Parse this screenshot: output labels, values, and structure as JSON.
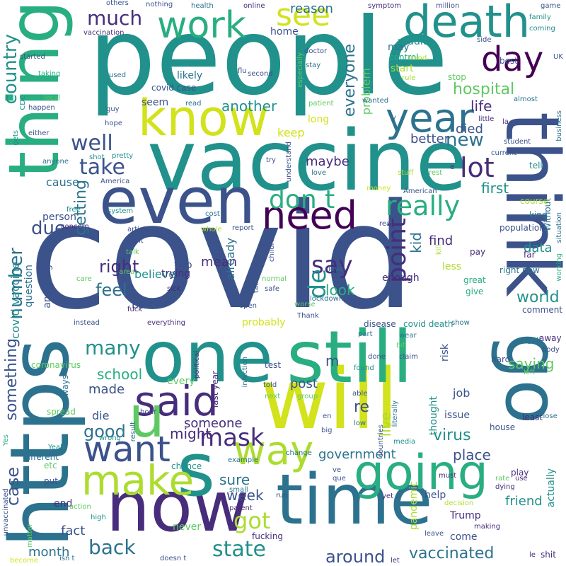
{
  "palette": [
    "#440154",
    "#472d7b",
    "#3b528b",
    "#2c728e",
    "#21918c",
    "#28ae80",
    "#5ec962",
    "#addc30",
    "#d2e21b"
  ],
  "words": {
    "covid": "covid",
    "people": "people",
    "vaccine": "vaccine",
    "will": "will",
    "now": "now",
    "time": "time",
    "https": "https",
    "one": "one",
    "still": "still",
    "go": "go",
    "even": "even",
    "thing": "thing",
    "think": "think",
    "know": "know",
    "death": "death",
    "s": "s",
    "going": "going",
    "make": "make",
    "year": "year",
    "said": "said",
    "see": "see",
    "need": "need",
    "way": "way",
    "want": "want",
    "u": "u",
    "work": "work",
    "got": "got",
    "really": "really",
    "day": "day",
    "mask": "mask",
    "lot": "lot",
    "don_t": "don t",
    "say": "say",
    "state": "state",
    "well": "well",
    "take": "take",
    "back": "back",
    "many": "many",
    "much": "much",
    "point": "point",
    "de": "de",
    "hospital": "hospital",
    "new": "new",
    "country": "country",
    "due": "due",
    "right": "right",
    "feel": "feel",
    "good": "good",
    "number": "number",
    "vaccinated": "vaccinated",
    "around": "around",
    "life": "life",
    "virus": "virus",
    "first": "first",
    "everyone": "everyone",
    "world": "world",
    "place": "place",
    "saying": "saying",
    "government": "government",
    "getting": "getting",
    "re": "re",
    "look": "look",
    "another": "another",
    "case": "case",
    "sure": "sure",
    "week": "week",
    "m": "m",
    "might": "might",
    "something": "something",
    "school": "school",
    "made": "made",
    "fact": "fact",
    "month": "month",
    "friend": "friend",
    "data": "data",
    "find": "find",
    "live": "live",
    "someone": "someone",
    "kid": "kid",
    "reason": "reason",
    "maybe": "maybe",
    "better": "better",
    "died": "died",
    "person": "person",
    "cause": "cause",
    "problem": "problem",
    "keep": "keep",
    "mean": "mean",
    "believe": "believe",
    "bad": "bad",
    "already": "already",
    "probably": "probably",
    "covid_vaccine": "covid vaccine",
    "question": "question",
    "anything": "anything",
    "seem": "seem",
    "likely": "likely",
    "home": "home",
    "may": "may",
    "start": "start",
    "long": "long",
    "less": "less",
    "risk": "risk",
    "enough": "enough",
    "post": "post",
    "every": "every",
    "trying": "trying",
    "two": "two",
    "die": "die",
    "job": "job",
    "issue": "issue",
    "thought": "thought",
    "come": "come",
    "help": "help",
    "Trump": "Trump",
    "never": "never",
    "end": "end",
    "pandemic": "pandemic",
    "actually": "actually",
    "reddit": "reddit",
    "control": "control",
    "stop": "stop",
    "best": "best",
    "covid_case": "covid case",
    "covid_death": "covid death",
    "test": "test",
    "last_year": "last year",
    "disease": "disease",
    "always": "always",
    "coronavirus": "coronavirus",
    "spread": "spread",
    "different": "different",
    "etc": "etc",
    "put": "put",
    "Yeah": "Yeah",
    "Yes": "Yes",
    "unvaccinated": "unvaccinated",
    "matter": "matter",
    "become": "become",
    "isn_t": "isn t",
    "doesn_t": "doesn t",
    "fucking": "fucking",
    "high": "high",
    "action": "action",
    "parent": "parent",
    "chance": "chance",
    "small": "small",
    "run": "run",
    "yet": "yet",
    "must": "must",
    "decision": "decision",
    "leave": "leave",
    "let": "let",
    "making": "making",
    "dying": "dying",
    "rate": "rate",
    "use": "use",
    "play": "play",
    "house": "house",
    "least": "least",
    "close": "close",
    "hard": "hard",
    "left": "left",
    "body": "body",
    "away": "away",
    "call": "call",
    "comment": "comment",
    "right_now": "right now",
    "give": "give",
    "great": "great",
    "pay": "pay",
    "far": "far",
    "kind": "kind",
    "population": "population",
    "course": "course",
    "tell": "tell",
    "current": "current",
    "student": "student",
    "business": "business",
    "Without": "Without",
    "situation": "situation",
    "working": "working",
    "kill": "kill",
    "real": "real",
    "money": "money",
    "American": "American",
    "stuff": "stuff",
    "rest": "rest",
    "love": "love",
    "try": "try",
    "understand": "understand",
    "America": "America",
    "system": "system",
    "free": "free",
    "cost": "cost",
    "whole": "whole",
    "report": "report",
    "concern": "concern",
    "article": "article",
    "went": "went",
    "talk": "talk",
    "care": "care",
    "area": "area",
    "sick": "sick",
    "fuck": "fuck",
    "instead": "instead",
    "everything": "everything",
    "open": "open",
    "lockdown": "lockdown",
    "safe": "safe",
    "normal": "normal",
    "talking": "talking",
    "children": "children",
    "level": "level",
    "Thank": "Thank",
    "worse": "worse",
    "wear": "wear",
    "part": "part",
    "show": "show",
    "done": "done",
    "claim": "claim",
    "bit": "bit",
    "found": "found",
    "infection": "infection",
    "told": "told",
    "next": "next",
    "group": "group",
    "able": "able",
    "en": "en",
    "big": "big",
    "low": "low",
    "media": "media",
    "countries": "countries",
    "literally": "literally",
    "change": "change",
    "example": "example",
    "result": "result",
    "political": "political",
    "hour": "hour",
    "wrong": "wrong",
    "ve": "ve",
    "que": "que",
    "la": "la",
    "little": "little",
    "y": "y",
    "e": "e",
    "wanted": "wanted",
    "patient": "patient",
    "especially": "especially",
    "stay": "stay",
    "rule": "rule",
    "mind": "mind",
    "side": "side",
    "UK": "UK",
    "almost": "almost",
    "coming": "coming",
    "family": "family",
    "game": "game",
    "million": "million",
    "symptom": "symptom",
    "online": "online",
    "health": "health",
    "nothing": "nothing",
    "others": "others",
    "vaccination": "vaccination",
    "doctor": "doctor",
    "flu": "flu",
    "second": "second",
    "read": "read",
    "used": "used",
    "taking": "taking",
    "started": "started",
    "local": "local",
    "CDC": "CDC",
    "happen": "happen",
    "guy": "guy",
    "hope": "hope",
    "gets": "gets",
    "either": "either",
    "anyone": "anyone",
    "shot": "shot",
    "pretty": "pretty",
    "le": "le",
    "shit": "shit"
  }
}
